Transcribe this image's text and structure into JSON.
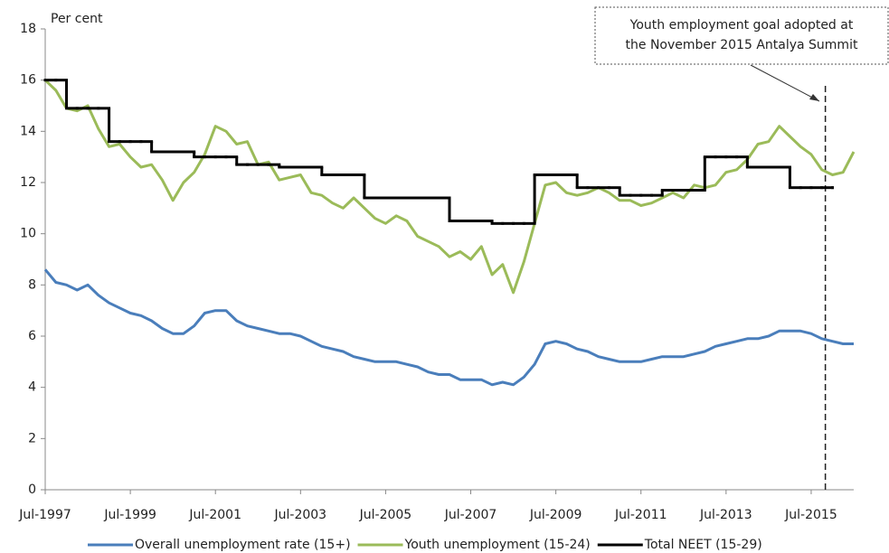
{
  "chart_data": {
    "type": "line",
    "y_label": "Per cent",
    "x": [
      "1997-07",
      "1997-10",
      "1998-01",
      "1998-04",
      "1998-07",
      "1998-10",
      "1999-01",
      "1999-04",
      "1999-07",
      "1999-10",
      "2000-01",
      "2000-04",
      "2000-07",
      "2000-10",
      "2001-01",
      "2001-04",
      "2001-07",
      "2001-10",
      "2002-01",
      "2002-04",
      "2002-07",
      "2002-10",
      "2003-01",
      "2003-04",
      "2003-07",
      "2003-10",
      "2004-01",
      "2004-04",
      "2004-07",
      "2004-10",
      "2005-01",
      "2005-04",
      "2005-07",
      "2005-10",
      "2006-01",
      "2006-04",
      "2006-07",
      "2006-10",
      "2007-01",
      "2007-04",
      "2007-07",
      "2007-10",
      "2008-01",
      "2008-04",
      "2008-07",
      "2008-10",
      "2009-01",
      "2009-04",
      "2009-07",
      "2009-10",
      "2010-01",
      "2010-04",
      "2010-07",
      "2010-10",
      "2011-01",
      "2011-04",
      "2011-07",
      "2011-10",
      "2012-01",
      "2012-04",
      "2012-07",
      "2012-10",
      "2013-01",
      "2013-04",
      "2013-07",
      "2013-10",
      "2014-01",
      "2014-04",
      "2014-07",
      "2014-10",
      "2015-01",
      "2015-04",
      "2015-07",
      "2015-10",
      "2016-01",
      "2016-04",
      "2016-07"
    ],
    "series": [
      {
        "name": "Overall unemployment rate (15+)",
        "color": "#4a7ebb",
        "values": [
          8.6,
          8.1,
          8.0,
          7.8,
          8.0,
          7.6,
          7.3,
          7.1,
          6.9,
          6.8,
          6.6,
          6.3,
          6.1,
          6.1,
          6.4,
          6.9,
          7.0,
          7.0,
          6.6,
          6.4,
          6.3,
          6.2,
          6.1,
          6.1,
          6.0,
          5.8,
          5.6,
          5.5,
          5.4,
          5.2,
          5.1,
          5.0,
          5.0,
          5.0,
          4.9,
          4.8,
          4.6,
          4.5,
          4.5,
          4.3,
          4.3,
          4.3,
          4.1,
          4.2,
          4.1,
          4.4,
          4.9,
          5.7,
          5.8,
          5.7,
          5.5,
          5.4,
          5.2,
          5.1,
          5.0,
          5.0,
          5.0,
          5.1,
          5.2,
          5.2,
          5.2,
          5.3,
          5.4,
          5.6,
          5.7,
          5.8,
          5.9,
          5.9,
          6.0,
          6.2,
          6.2,
          6.2,
          6.1,
          5.9,
          5.8,
          5.7,
          5.7
        ]
      },
      {
        "name": "Youth unemployment (15-24)",
        "color": "#9bbb59",
        "values": [
          16.0,
          15.6,
          14.9,
          14.8,
          15.0,
          14.1,
          13.4,
          13.5,
          13.0,
          12.6,
          12.7,
          12.1,
          11.3,
          12.0,
          12.4,
          13.1,
          14.2,
          14.0,
          13.5,
          13.6,
          12.7,
          12.8,
          12.1,
          12.2,
          12.3,
          11.6,
          11.5,
          11.2,
          11.0,
          11.4,
          11.0,
          10.6,
          10.4,
          10.7,
          10.5,
          9.9,
          9.7,
          9.5,
          9.1,
          9.3,
          9.0,
          9.5,
          8.4,
          8.8,
          7.7,
          8.9,
          10.4,
          11.9,
          12.0,
          11.6,
          11.5,
          11.6,
          11.8,
          11.6,
          11.3,
          11.3,
          11.1,
          11.2,
          11.4,
          11.6,
          11.4,
          11.9,
          11.8,
          11.9,
          12.4,
          12.5,
          12.9,
          13.5,
          13.6,
          14.2,
          13.8,
          13.4,
          13.1,
          12.5,
          12.3,
          12.4,
          13.2
        ]
      },
      {
        "name": "Total NEET (15-29)",
        "color": "#000000",
        "drawstyle": "steps-post",
        "values": [
          16.0,
          16.0,
          14.9,
          14.9,
          14.9,
          14.9,
          13.6,
          13.6,
          13.6,
          13.6,
          13.2,
          13.2,
          13.2,
          13.2,
          13.0,
          13.0,
          13.0,
          13.0,
          12.7,
          12.7,
          12.7,
          12.7,
          12.6,
          12.6,
          12.6,
          12.6,
          12.3,
          12.3,
          12.3,
          12.3,
          11.4,
          11.4,
          11.4,
          11.4,
          11.4,
          11.4,
          11.4,
          11.4,
          10.5,
          10.5,
          10.5,
          10.5,
          10.4,
          10.4,
          10.4,
          10.4,
          12.3,
          12.3,
          12.3,
          12.3,
          11.8,
          11.8,
          11.8,
          11.8,
          11.5,
          11.5,
          11.5,
          11.5,
          11.7,
          11.7,
          11.7,
          11.7,
          13.0,
          13.0,
          13.0,
          13.0,
          12.6,
          12.6,
          12.6,
          12.6,
          11.8,
          11.8,
          11.8,
          11.8,
          11.8,
          null,
          null
        ]
      }
    ],
    "xlim": [
      "1997-07",
      "2016-07"
    ],
    "xticks": [
      {
        "value": "1997-07",
        "label": "Jul-1997"
      },
      {
        "value": "1999-07",
        "label": "Jul-1999"
      },
      {
        "value": "2001-07",
        "label": "Jul-2001"
      },
      {
        "value": "2003-07",
        "label": "Jul-2003"
      },
      {
        "value": "2005-07",
        "label": "Jul-2005"
      },
      {
        "value": "2007-07",
        "label": "Jul-2007"
      },
      {
        "value": "2009-07",
        "label": "Jul-2009"
      },
      {
        "value": "2011-07",
        "label": "Jul-2011"
      },
      {
        "value": "2013-07",
        "label": "Jul-2013"
      },
      {
        "value": "2015-07",
        "label": "Jul-2015"
      }
    ],
    "ylim": [
      0,
      18
    ],
    "yticks": [
      0,
      2,
      4,
      6,
      8,
      10,
      12,
      14,
      16,
      18
    ],
    "grid": false,
    "legend": "bottom",
    "annotation": {
      "lines": [
        "Youth employment goal adopted at",
        "the November 2015 Antalya Summit"
      ],
      "x": "2015-11"
    }
  }
}
